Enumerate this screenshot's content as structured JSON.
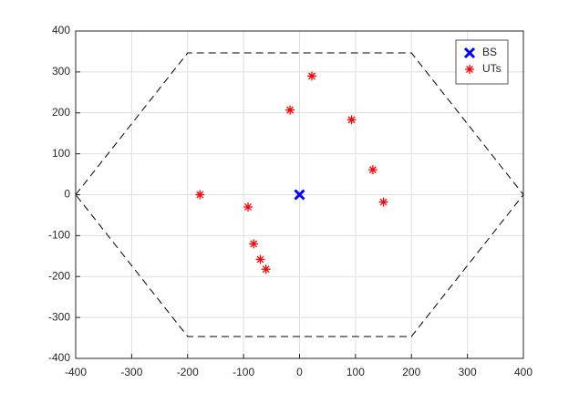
{
  "chart_data": {
    "type": "scatter",
    "series": [
      {
        "name": "BS",
        "color": "#0000ff",
        "marker": "x",
        "x": [
          0
        ],
        "values": [
          0
        ]
      },
      {
        "name": "UTs",
        "color": "#ff0000",
        "marker": "*",
        "x": [
          22,
          -17,
          93,
          131,
          150,
          -178,
          -92,
          -82,
          -70,
          -60
        ],
        "values": [
          290,
          207,
          183,
          61,
          -18,
          0,
          -30,
          -120,
          -158,
          -182
        ]
      },
      {
        "color": "#000000",
        "line_style": "dashed",
        "x": [
          -400,
          -200,
          200,
          400,
          200,
          -200,
          -400
        ],
        "values": [
          0,
          346.4,
          346.4,
          0,
          -346.4,
          -346.4,
          0
        ]
      }
    ],
    "xlim": [
      -400,
      400
    ],
    "ylim": [
      -400,
      400
    ],
    "xticks": [
      -400,
      -300,
      -200,
      -100,
      0,
      100,
      200,
      300,
      400
    ],
    "yticks": [
      -400,
      -300,
      -200,
      -100,
      0,
      100,
      200,
      300,
      400
    ],
    "grid": true,
    "legend": "northeast"
  }
}
